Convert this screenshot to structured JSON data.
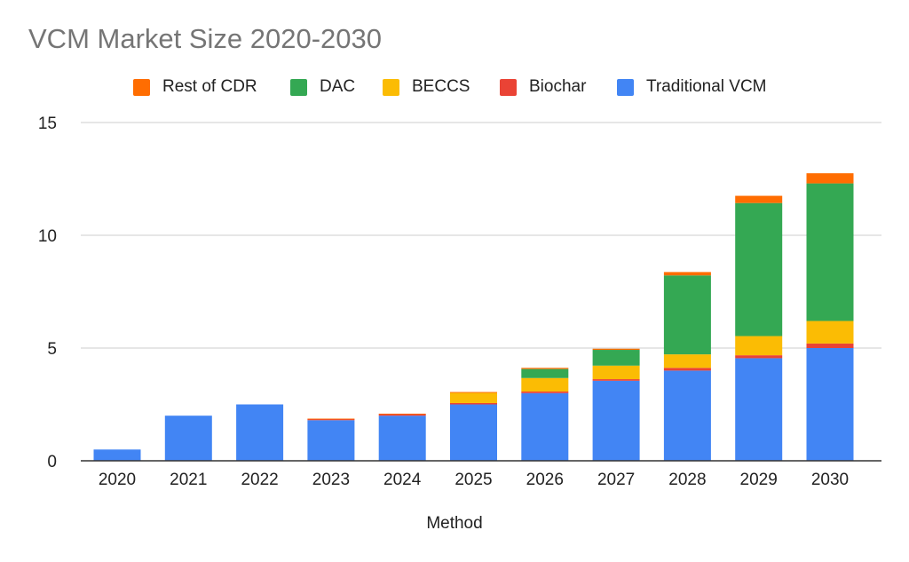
{
  "chart_data": {
    "type": "bar",
    "stacked": true,
    "title": "VCM Market Size 2020-2030",
    "xlabel": "Method",
    "ylabel": "",
    "ylim": [
      0,
      15
    ],
    "yticks": [
      "0",
      "5",
      "10",
      "15"
    ],
    "grid": true,
    "legend_position": "top",
    "categories": [
      "2020",
      "2021",
      "2022",
      "2023",
      "2024",
      "2025",
      "2026",
      "2027",
      "2028",
      "2029",
      "2030"
    ],
    "series": [
      {
        "name": "Traditional VCM",
        "color": "#4285f4",
        "values": [
          0.5,
          2.0,
          2.5,
          1.8,
          2.0,
          2.5,
          3.0,
          3.55,
          4.0,
          4.55,
          5.0
        ]
      },
      {
        "name": "Biochar",
        "color": "#ea4335",
        "values": [
          0,
          0,
          0,
          0.05,
          0.07,
          0.06,
          0.07,
          0.07,
          0.12,
          0.13,
          0.2
        ]
      },
      {
        "name": "BECCS",
        "color": "#fbbc04",
        "values": [
          0,
          0,
          0,
          0,
          0,
          0.45,
          0.6,
          0.6,
          0.6,
          0.85,
          1.0
        ]
      },
      {
        "name": "DAC",
        "color": "#34a853",
        "values": [
          0,
          0,
          0,
          0,
          0,
          0,
          0.4,
          0.7,
          3.5,
          5.9,
          6.1
        ]
      },
      {
        "name": "Rest of CDR",
        "color": "#ff6d01",
        "values": [
          0,
          0,
          0,
          0.02,
          0.02,
          0.04,
          0.05,
          0.05,
          0.15,
          0.32,
          0.45
        ]
      }
    ],
    "legend_order": [
      "Rest of CDR",
      "DAC",
      "BECCS",
      "Biochar",
      "Traditional VCM"
    ]
  }
}
